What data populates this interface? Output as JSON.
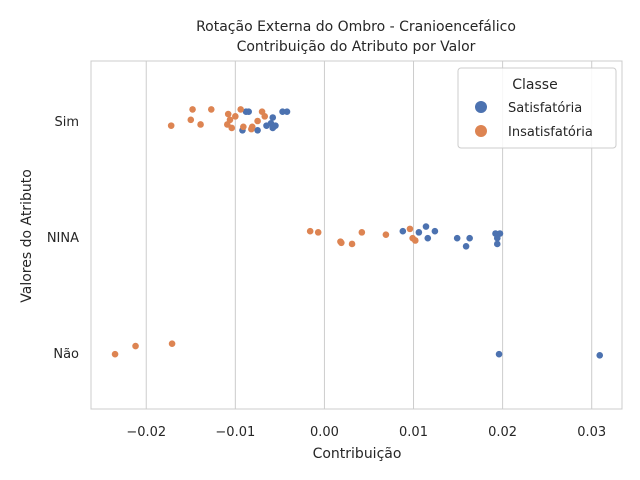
{
  "chart_data": {
    "type": "scatter",
    "title": "Rotação Externa do Ombro - Cranioencefálico",
    "subtitle": "Contribuição do Atributo por Valor",
    "xlabel": "Contribuição",
    "ylabel": "Valores do Atributo",
    "xlim": [
      -0.0262,
      0.0334
    ],
    "x_ticks": [
      -0.02,
      -0.01,
      0.0,
      0.01,
      0.02,
      0.03
    ],
    "x_tick_labels": [
      "−0.02",
      "−0.01",
      "0.00",
      "0.01",
      "0.02",
      "0.03"
    ],
    "categories": [
      "Sim",
      "NINA",
      "Não"
    ],
    "grid": true,
    "legend": {
      "title": "Classe",
      "position": "top-right"
    },
    "series": [
      {
        "name": "Satisfatória",
        "color": "#4c72b0",
        "points": [
          {
            "x": -0.0088,
            "y": "Sim",
            "jitter": -0.08
          },
          {
            "x": -0.0085,
            "y": "Sim",
            "jitter": -0.08
          },
          {
            "x": -0.0047,
            "y": "Sim",
            "jitter": -0.08
          },
          {
            "x": -0.0042,
            "y": "Sim",
            "jitter": -0.08
          },
          {
            "x": -0.0058,
            "y": "Sim",
            "jitter": -0.03
          },
          {
            "x": -0.006,
            "y": "Sim",
            "jitter": 0.02
          },
          {
            "x": -0.0055,
            "y": "Sim",
            "jitter": 0.04
          },
          {
            "x": -0.0058,
            "y": "Sim",
            "jitter": 0.06
          },
          {
            "x": -0.0065,
            "y": "Sim",
            "jitter": 0.04
          },
          {
            "x": -0.0075,
            "y": "Sim",
            "jitter": 0.08
          },
          {
            "x": -0.0092,
            "y": "Sim",
            "jitter": 0.08
          },
          {
            "x": 0.0088,
            "y": "NINA",
            "jitter": -0.05
          },
          {
            "x": 0.0106,
            "y": "NINA",
            "jitter": -0.04
          },
          {
            "x": 0.0114,
            "y": "NINA",
            "jitter": -0.09
          },
          {
            "x": 0.0124,
            "y": "NINA",
            "jitter": -0.05
          },
          {
            "x": 0.0116,
            "y": "NINA",
            "jitter": 0.01
          },
          {
            "x": 0.0149,
            "y": "NINA",
            "jitter": 0.01
          },
          {
            "x": 0.0163,
            "y": "NINA",
            "jitter": 0.01
          },
          {
            "x": 0.0159,
            "y": "NINA",
            "jitter": 0.08
          },
          {
            "x": 0.0192,
            "y": "NINA",
            "jitter": -0.03
          },
          {
            "x": 0.0197,
            "y": "NINA",
            "jitter": -0.03
          },
          {
            "x": 0.0194,
            "y": "NINA",
            "jitter": 0.01
          },
          {
            "x": 0.0194,
            "y": "NINA",
            "jitter": 0.06
          },
          {
            "x": 0.0196,
            "y": "Não",
            "jitter": 0.01
          },
          {
            "x": 0.0309,
            "y": "Não",
            "jitter": 0.02
          }
        ]
      },
      {
        "name": "Insatisfatória",
        "color": "#dd8452",
        "points": [
          {
            "x": -0.0148,
            "y": "Sim",
            "jitter": -0.1
          },
          {
            "x": -0.0127,
            "y": "Sim",
            "jitter": -0.1
          },
          {
            "x": -0.0094,
            "y": "Sim",
            "jitter": -0.1
          },
          {
            "x": -0.007,
            "y": "Sim",
            "jitter": -0.08
          },
          {
            "x": -0.0108,
            "y": "Sim",
            "jitter": -0.06
          },
          {
            "x": -0.01,
            "y": "Sim",
            "jitter": -0.04
          },
          {
            "x": -0.0067,
            "y": "Sim",
            "jitter": -0.04
          },
          {
            "x": -0.015,
            "y": "Sim",
            "jitter": -0.01
          },
          {
            "x": -0.0106,
            "y": "Sim",
            "jitter": -0.01
          },
          {
            "x": -0.0075,
            "y": "Sim",
            "jitter": 0.0
          },
          {
            "x": -0.0139,
            "y": "Sim",
            "jitter": 0.03
          },
          {
            "x": -0.0109,
            "y": "Sim",
            "jitter": 0.03
          },
          {
            "x": -0.0091,
            "y": "Sim",
            "jitter": 0.05
          },
          {
            "x": -0.0081,
            "y": "Sim",
            "jitter": 0.05
          },
          {
            "x": -0.0172,
            "y": "Sim",
            "jitter": 0.04
          },
          {
            "x": -0.0104,
            "y": "Sim",
            "jitter": 0.06
          },
          {
            "x": -0.0082,
            "y": "Sim",
            "jitter": 0.07
          },
          {
            "x": -0.0016,
            "y": "NINA",
            "jitter": -0.05
          },
          {
            "x": -0.0007,
            "y": "NINA",
            "jitter": -0.04
          },
          {
            "x": 0.0042,
            "y": "NINA",
            "jitter": -0.04
          },
          {
            "x": 0.0096,
            "y": "NINA",
            "jitter": -0.07
          },
          {
            "x": 0.0069,
            "y": "NINA",
            "jitter": -0.02
          },
          {
            "x": 0.0099,
            "y": "NINA",
            "jitter": 0.01
          },
          {
            "x": 0.0102,
            "y": "NINA",
            "jitter": 0.03
          },
          {
            "x": 0.0018,
            "y": "NINA",
            "jitter": 0.04
          },
          {
            "x": 0.0019,
            "y": "NINA",
            "jitter": 0.05
          },
          {
            "x": 0.0031,
            "y": "NINA",
            "jitter": 0.06
          },
          {
            "x": -0.0171,
            "y": "Não",
            "jitter": -0.08
          },
          {
            "x": -0.0212,
            "y": "Não",
            "jitter": -0.06
          },
          {
            "x": -0.0235,
            "y": "Não",
            "jitter": 0.01
          }
        ]
      }
    ]
  }
}
